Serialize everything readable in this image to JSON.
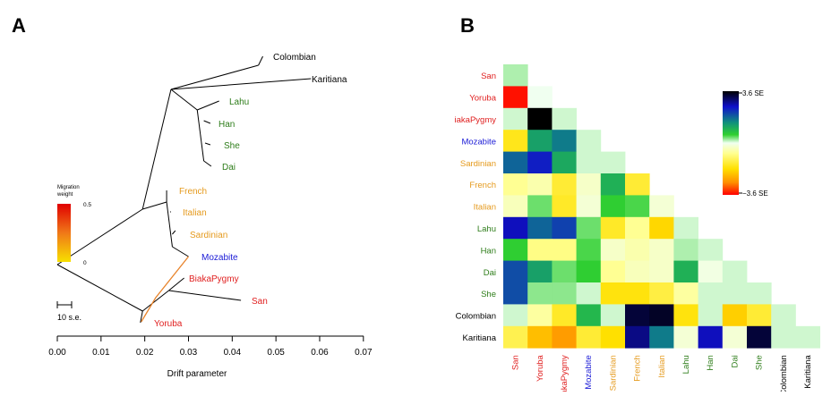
{
  "panel_a": {
    "letter": "A",
    "tips": [
      {
        "name": "Colombian",
        "color": "#000000"
      },
      {
        "name": "Karitiana",
        "color": "#000000"
      },
      {
        "name": "Lahu",
        "color": "#2e7d1a"
      },
      {
        "name": "Han",
        "color": "#2e7d1a"
      },
      {
        "name": "She",
        "color": "#2e7d1a"
      },
      {
        "name": "Dai",
        "color": "#2e7d1a"
      },
      {
        "name": "French",
        "color": "#e59a1d"
      },
      {
        "name": "Italian",
        "color": "#e59a1d"
      },
      {
        "name": "Sardinian",
        "color": "#e59a1d"
      },
      {
        "name": "Mozabite",
        "color": "#1a1ad6"
      },
      {
        "name": "BiakaPygmy",
        "color": "#e02020"
      },
      {
        "name": "San",
        "color": "#e02020"
      },
      {
        "name": "Yoruba",
        "color": "#e02020"
      }
    ],
    "legend": {
      "title_line1": "Migration",
      "title_line2": "weight",
      "max_label": "0.5",
      "min_label": "0"
    },
    "scale_label": "10 s.e.",
    "x_axis": {
      "label": "Drift parameter",
      "ticks": [
        "0.00",
        "0.01",
        "0.02",
        "0.03",
        "0.04",
        "0.05",
        "0.06",
        "0.07"
      ]
    },
    "migration_color": "#e8832a"
  },
  "panel_b": {
    "letter": "B",
    "populations": [
      {
        "name": "San",
        "row_label": "San",
        "color": "#e02020"
      },
      {
        "name": "Yoruba",
        "row_label": "Yoruba",
        "color": "#e02020"
      },
      {
        "name": "BiakaPygmy",
        "row_label": "iakaPygmy",
        "color": "#e02020"
      },
      {
        "name": "Mozabite",
        "row_label": "Mozabite",
        "color": "#1a1ad6"
      },
      {
        "name": "Sardinian",
        "row_label": "Sardinian",
        "color": "#e59a1d"
      },
      {
        "name": "French",
        "row_label": "French",
        "color": "#e59a1d"
      },
      {
        "name": "Italian",
        "row_label": "Italian",
        "color": "#e59a1d"
      },
      {
        "name": "Lahu",
        "row_label": "Lahu",
        "color": "#2e7d1a"
      },
      {
        "name": "Han",
        "row_label": "Han",
        "color": "#2e7d1a"
      },
      {
        "name": "Dai",
        "row_label": "Dai",
        "color": "#2e7d1a"
      },
      {
        "name": "She",
        "row_label": "She",
        "color": "#2e7d1a"
      },
      {
        "name": "Colombian",
        "row_label": "Colombian",
        "color": "#000000"
      },
      {
        "name": "Karitiana",
        "row_label": "Karitiana",
        "color": "#000000"
      }
    ],
    "colorbar": {
      "max_label": "3.6 SE",
      "min_label": "−3.6 SE"
    }
  },
  "chart_data": [
    {
      "type": "tree",
      "title": "",
      "xlabel": "Drift parameter",
      "xlim": [
        0,
        0.07
      ],
      "tips": [
        {
          "name": "Colombian",
          "drift": 0.047
        },
        {
          "name": "Karitiana",
          "drift": 0.058
        },
        {
          "name": "Lahu",
          "drift": 0.037
        },
        {
          "name": "Han",
          "drift": 0.035
        },
        {
          "name": "She",
          "drift": 0.035
        },
        {
          "name": "Dai",
          "drift": 0.035
        },
        {
          "name": "French",
          "drift": 0.025
        },
        {
          "name": "Italian",
          "drift": 0.026
        },
        {
          "name": "Sardinian",
          "drift": 0.027
        },
        {
          "name": "Mozabite",
          "drift": 0.03
        },
        {
          "name": "BiakaPygmy",
          "drift": 0.029
        },
        {
          "name": "San",
          "drift": 0.042
        },
        {
          "name": "Yoruba",
          "drift": 0.019
        }
      ],
      "migration_edges": [
        {
          "from": "Mozabite",
          "to": "Yoruba lineage",
          "weight": 0.25
        }
      ],
      "legend": {
        "title": "Migration weight",
        "range": [
          0,
          0.5
        ]
      }
    },
    {
      "type": "heatmap",
      "title": "",
      "lower_triangular": true,
      "scale": {
        "min": -3.6,
        "max": 3.6,
        "unit": "SE"
      },
      "labels": [
        "San",
        "Yoruba",
        "BiakaPygmy",
        "Mozabite",
        "Sardinian",
        "French",
        "Italian",
        "Lahu",
        "Han",
        "Dai",
        "She",
        "Colombian",
        "Karitiana"
      ],
      "matrix": [
        [
          0.2
        ],
        [
          -3.5,
          0
        ],
        [
          0.1,
          3.6,
          0.1
        ],
        [
          -1.6,
          1.2,
          1.6,
          0.1
        ],
        [
          1.8,
          2.4,
          1.1,
          0.1,
          0.1
        ],
        [
          -0.7,
          -0.5,
          -1.4,
          -0.3,
          1.0,
          -1.4
        ],
        [
          -0.4,
          0.4,
          -1.5,
          -0.2,
          0.6,
          0.5,
          -0.2
        ],
        [
          2.6,
          1.8,
          2.1,
          0.4,
          -1.5,
          -0.7,
          -1.9,
          0.1
        ],
        [
          0.6,
          -0.8,
          -0.8,
          0.5,
          -0.3,
          -0.5,
          -0.3,
          0.2,
          0.1
        ],
        [
          2.0,
          1.2,
          0.4,
          0.6,
          -0.7,
          -0.4,
          -0.3,
          1.0,
          -0.1,
          0.1
        ],
        [
          2.0,
          0.3,
          0.3,
          0.1,
          -1.7,
          -1.7,
          -1.3,
          -0.6,
          0.1,
          0.1,
          0.1
        ],
        [
          0.1,
          -0.6,
          -1.5,
          0.9,
          0.1,
          3.3,
          3.4,
          -1.7,
          0.1,
          -2.0,
          -1.4,
          0.1
        ],
        [
          -1.2,
          -2.2,
          -2.6,
          -1.4,
          -1.8,
          2.9,
          1.6,
          -0.2,
          2.6,
          -0.2,
          3.3,
          0.1,
          0.1
        ]
      ]
    }
  ]
}
